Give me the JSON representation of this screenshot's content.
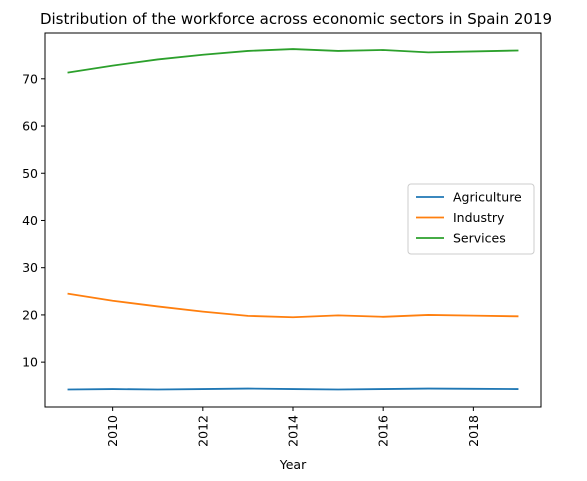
{
  "chart_data": {
    "type": "line",
    "title": "Distribution of the workforce across economic sectors in Spain 2019",
    "xlabel": "Year",
    "ylabel": "",
    "x": [
      2009,
      2010,
      2011,
      2012,
      2013,
      2014,
      2015,
      2016,
      2017,
      2018,
      2019
    ],
    "xlim": [
      2008.5,
      2019.5
    ],
    "ylim": [
      0.5,
      79.7
    ],
    "x_ticks": [
      "2010",
      "2012",
      "2014",
      "2016",
      "2018"
    ],
    "y_ticks": [
      "10",
      "20",
      "30",
      "40",
      "50",
      "60",
      "70"
    ],
    "x_tick_rotation": "vertical",
    "grid": false,
    "legend_position": "center-right",
    "series": [
      {
        "name": "Agriculture",
        "color": "#1f77b4",
        "values": [
          4.2,
          4.3,
          4.2,
          4.3,
          4.4,
          4.3,
          4.2,
          4.3,
          4.4,
          4.35,
          4.3
        ]
      },
      {
        "name": "Industry",
        "color": "#ff7f0e",
        "values": [
          24.5,
          23.0,
          21.8,
          20.7,
          19.8,
          19.5,
          19.9,
          19.6,
          20.0,
          19.85,
          19.7
        ]
      },
      {
        "name": "Services",
        "color": "#2ca02c",
        "values": [
          71.3,
          72.8,
          74.1,
          75.1,
          75.9,
          76.3,
          75.9,
          76.1,
          75.6,
          75.8,
          76.0
        ]
      }
    ]
  }
}
